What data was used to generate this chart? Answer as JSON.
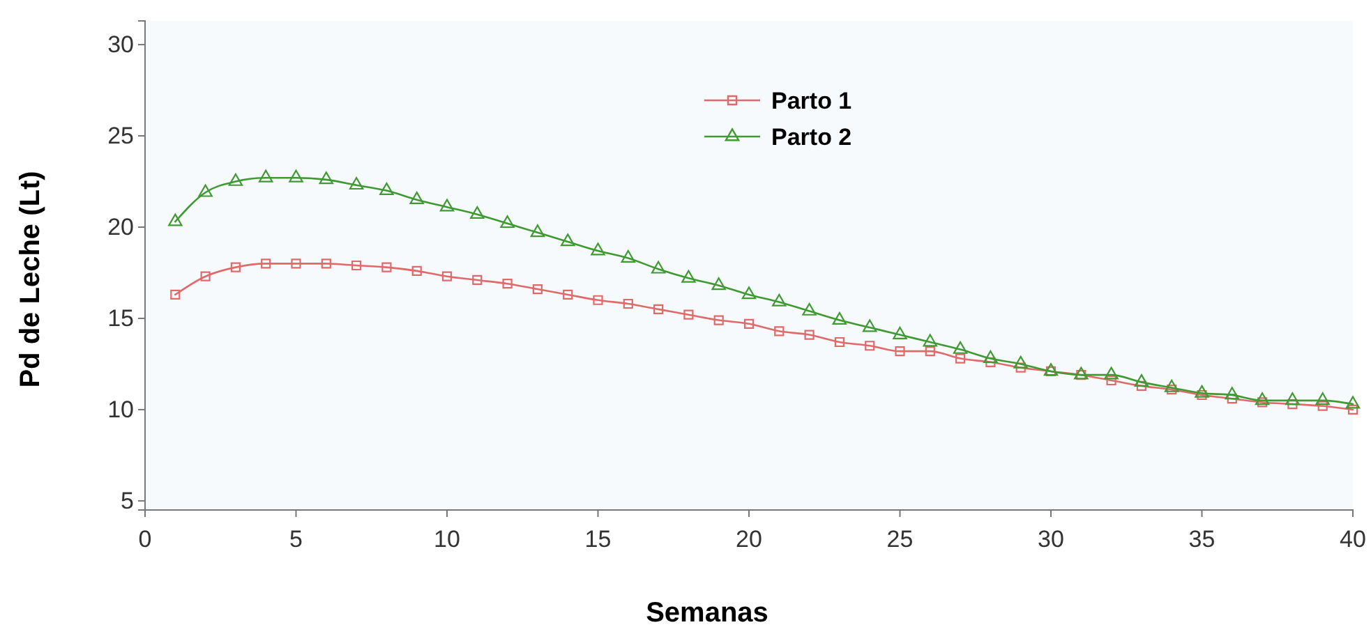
{
  "chart_data": {
    "type": "line",
    "xlabel": "Semanas",
    "ylabel": "Pd de Leche (Lt)",
    "x": [
      1,
      2,
      3,
      4,
      5,
      6,
      7,
      8,
      9,
      10,
      11,
      12,
      13,
      14,
      15,
      16,
      17,
      18,
      19,
      20,
      21,
      22,
      23,
      24,
      25,
      26,
      27,
      28,
      29,
      30,
      31,
      32,
      33,
      34,
      35,
      36,
      37,
      38,
      39,
      40
    ],
    "series": [
      {
        "name": "Parto 1",
        "color": "#e06a6a",
        "marker": "square",
        "values": [
          16.3,
          17.3,
          17.8,
          18.0,
          18.0,
          18.0,
          17.9,
          17.8,
          17.6,
          17.3,
          17.1,
          16.9,
          16.6,
          16.3,
          16.0,
          15.8,
          15.5,
          15.2,
          14.9,
          14.7,
          14.3,
          14.1,
          13.7,
          13.5,
          13.2,
          13.2,
          12.8,
          12.6,
          12.3,
          12.1,
          11.9,
          11.6,
          11.3,
          11.1,
          10.8,
          10.6,
          10.4,
          10.3,
          10.2,
          10.0
        ]
      },
      {
        "name": "Parto 2",
        "color": "#3f9a32",
        "marker": "triangle",
        "values": [
          20.3,
          21.9,
          22.5,
          22.7,
          22.7,
          22.6,
          22.3,
          22.0,
          21.5,
          21.1,
          20.7,
          20.2,
          19.7,
          19.2,
          18.7,
          18.3,
          17.7,
          17.2,
          16.8,
          16.3,
          15.9,
          15.4,
          14.9,
          14.5,
          14.1,
          13.7,
          13.3,
          12.8,
          12.5,
          12.1,
          11.9,
          11.9,
          11.5,
          11.2,
          10.9,
          10.8,
          10.5,
          10.5,
          10.5,
          10.3
        ]
      }
    ],
    "xlim": [
      0,
      40
    ],
    "xticks": [
      0,
      5,
      10,
      15,
      20,
      25,
      30,
      35,
      40
    ],
    "ylim": [
      4.5,
      31.3
    ],
    "yticks": [
      5,
      10,
      15,
      20,
      25,
      30
    ],
    "legend": "top",
    "grid": false,
    "line_style": "solid"
  }
}
